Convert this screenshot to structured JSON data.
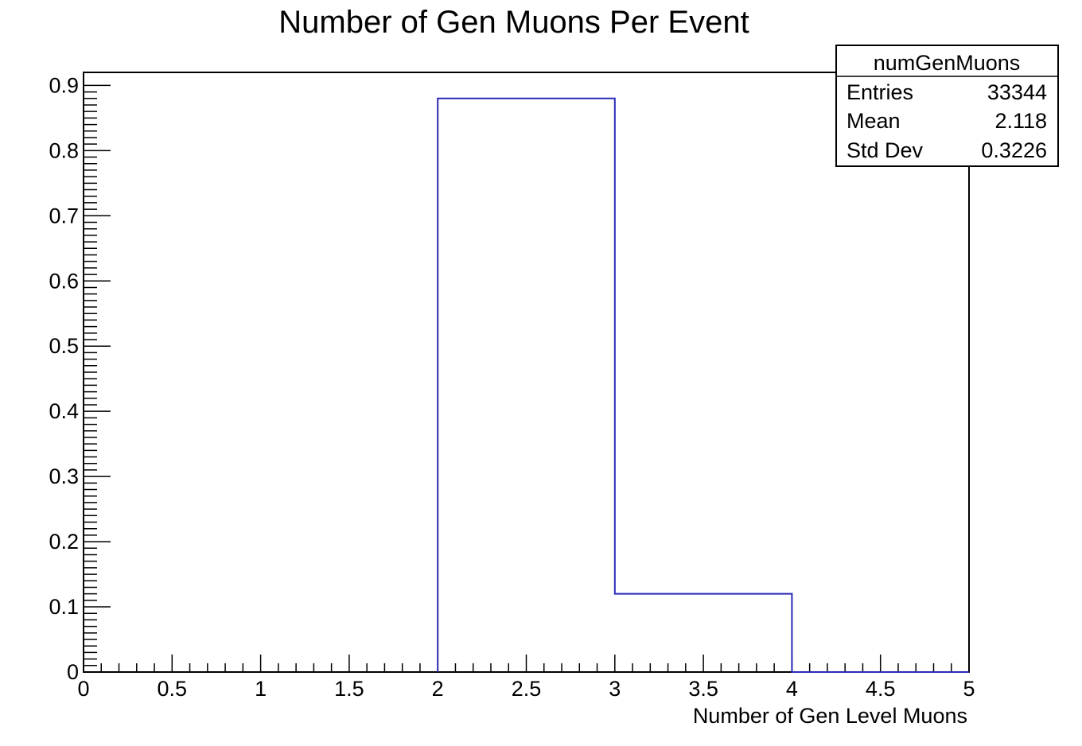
{
  "chart_data": {
    "type": "bar",
    "title": "Number of Gen Muons Per Event",
    "xlabel": "Number of Gen Level Muons",
    "ylabel": "",
    "xlim": [
      0,
      5
    ],
    "ylim": [
      0,
      0.92
    ],
    "bin_edges": [
      0,
      1,
      2,
      3,
      4,
      5
    ],
    "values": [
      0,
      0,
      0.88,
      0.12,
      0
    ],
    "x_ticks": [
      "0",
      "0.5",
      "1",
      "1.5",
      "2",
      "2.5",
      "3",
      "3.5",
      "4",
      "4.5",
      "5"
    ],
    "y_ticks": [
      "0",
      "0.1",
      "0.2",
      "0.3",
      "0.4",
      "0.5",
      "0.6",
      "0.7",
      "0.8",
      "0.9"
    ],
    "line_color": "#2a2ab8",
    "grid": false
  },
  "stats_box": {
    "name": "numGenMuons",
    "rows": [
      {
        "label": "Entries",
        "value": "33344"
      },
      {
        "label": "Mean",
        "value": "2.118"
      },
      {
        "label": "Std Dev",
        "value": "0.3226"
      }
    ]
  }
}
